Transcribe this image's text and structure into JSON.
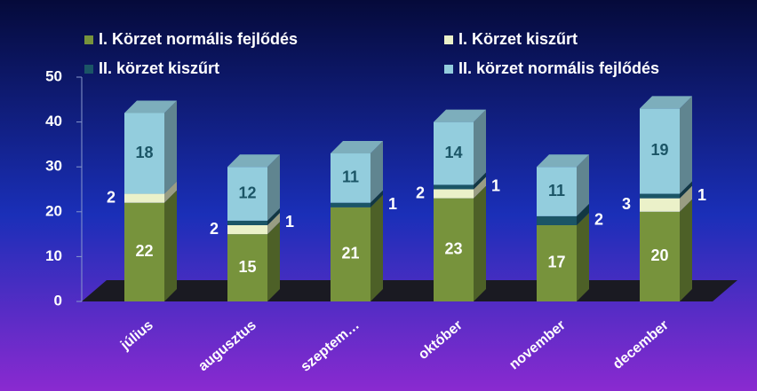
{
  "chart_data": {
    "type": "bar3d_stacked",
    "categories": [
      "július",
      "augusztus",
      "szeptem…",
      "október",
      "november",
      "december"
    ],
    "series": [
      {
        "name": "I. Körzet normális fejlődés",
        "color": "#77933c",
        "values": [
          22,
          15,
          21,
          23,
          17,
          20
        ]
      },
      {
        "name": "I. Körzet kiszűrt",
        "color": "#ebf1c9",
        "values": [
          2,
          2,
          null,
          2,
          null,
          3
        ]
      },
      {
        "name": "II. körzet kiszűrt",
        "color": "#1b5566",
        "values": [
          null,
          1,
          1,
          1,
          2,
          1
        ]
      },
      {
        "name": "II. körzet normális fejlődés",
        "color": "#93cddd",
        "values": [
          18,
          12,
          11,
          14,
          11,
          19
        ]
      }
    ],
    "ylim": [
      0,
      50
    ],
    "yticks": [
      0,
      10,
      20,
      30,
      40,
      50
    ]
  }
}
